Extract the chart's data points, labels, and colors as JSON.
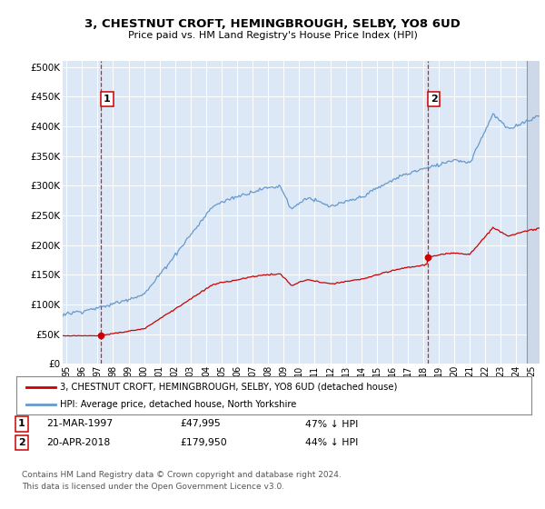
{
  "title": "3, CHESTNUT CROFT, HEMINGBROUGH, SELBY, YO8 6UD",
  "subtitle": "Price paid vs. HM Land Registry's House Price Index (HPI)",
  "ylabel_ticks": [
    "£0",
    "£50K",
    "£100K",
    "£150K",
    "£200K",
    "£250K",
    "£300K",
    "£350K",
    "£400K",
    "£450K",
    "£500K"
  ],
  "ytick_values": [
    0,
    50000,
    100000,
    150000,
    200000,
    250000,
    300000,
    350000,
    400000,
    450000,
    500000
  ],
  "ylim": [
    0,
    510000
  ],
  "xlim_start": 1994.75,
  "xlim_end": 2025.5,
  "xticks": [
    1995,
    1996,
    1997,
    1998,
    1999,
    2000,
    2001,
    2002,
    2003,
    2004,
    2005,
    2006,
    2007,
    2008,
    2009,
    2010,
    2011,
    2012,
    2013,
    2014,
    2015,
    2016,
    2017,
    2018,
    2019,
    2020,
    2021,
    2022,
    2023,
    2024,
    2025
  ],
  "fig_bg": "#ffffff",
  "plot_bg": "#dce8f5",
  "grid_color": "#ffffff",
  "hpi_color": "#6699cc",
  "price_color": "#cc0000",
  "marker1_date": 1997.22,
  "marker1_price": 47995,
  "marker2_date": 2018.3,
  "marker2_price": 179950,
  "legend_label1": "3, CHESTNUT CROFT, HEMINGBROUGH, SELBY, YO8 6UD (detached house)",
  "legend_label2": "HPI: Average price, detached house, North Yorkshire",
  "note1_date": "21-MAR-1997",
  "note1_price": "£47,995",
  "note1_hpi": "47% ↓ HPI",
  "note2_date": "20-APR-2018",
  "note2_price": "£179,950",
  "note2_hpi": "44% ↓ HPI",
  "footer": "Contains HM Land Registry data © Crown copyright and database right 2024.\nThis data is licensed under the Open Government Licence v3.0.",
  "dashed_line_color": "#cc0000",
  "hatch_start": 2024.67
}
